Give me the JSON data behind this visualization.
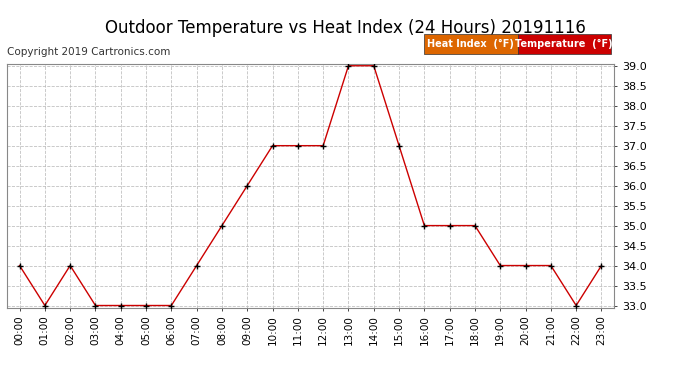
{
  "title": "Outdoor Temperature vs Heat Index (24 Hours) 20191116",
  "copyright": "Copyright 2019 Cartronics.com",
  "x_labels": [
    "00:00",
    "01:00",
    "02:00",
    "03:00",
    "04:00",
    "05:00",
    "06:00",
    "07:00",
    "08:00",
    "09:00",
    "10:00",
    "11:00",
    "12:00",
    "13:00",
    "14:00",
    "15:00",
    "16:00",
    "17:00",
    "18:00",
    "19:00",
    "20:00",
    "21:00",
    "22:00",
    "23:00"
  ],
  "temperature": [
    34.0,
    33.0,
    34.0,
    33.0,
    33.0,
    33.0,
    33.0,
    34.0,
    35.0,
    36.0,
    37.0,
    37.0,
    37.0,
    39.0,
    39.0,
    37.0,
    35.0,
    35.0,
    35.0,
    34.0,
    34.0,
    34.0,
    33.0,
    34.0
  ],
  "heat_index": [
    34.0,
    33.0,
    34.0,
    33.0,
    33.0,
    33.0,
    33.0,
    34.0,
    35.0,
    36.0,
    37.0,
    37.0,
    37.0,
    39.0,
    39.0,
    37.0,
    35.0,
    35.0,
    35.0,
    34.0,
    34.0,
    34.0,
    33.0,
    34.0
  ],
  "ylim": [
    33.0,
    39.0
  ],
  "yticks": [
    33.0,
    33.5,
    34.0,
    34.5,
    35.0,
    35.5,
    36.0,
    36.5,
    37.0,
    37.5,
    38.0,
    38.5,
    39.0
  ],
  "line_color": "#cc0000",
  "marker_color": "#000000",
  "bg_color": "#ffffff",
  "grid_color": "#bbbbbb",
  "legend_heat_index_bg": "#dd6600",
  "legend_temperature_bg": "#cc0000",
  "legend_text_color": "#ffffff",
  "legend_heat_label": "Heat Index  (°F)",
  "legend_temp_label": "Temperature  (°F)",
  "title_fontsize": 12,
  "copyright_fontsize": 7.5,
  "tick_fontsize": 7.5,
  "ytick_fontsize": 8
}
